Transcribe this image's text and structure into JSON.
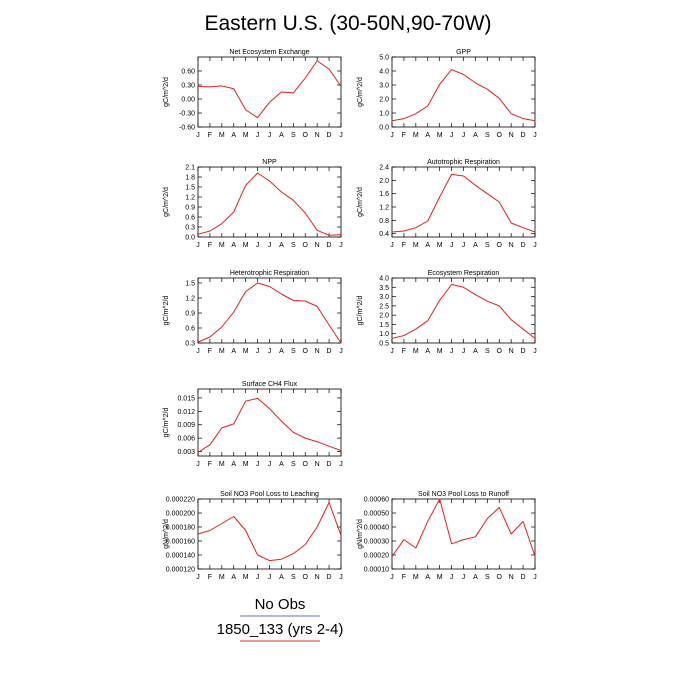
{
  "title": "Eastern U.S. (30-50N,90-70W)",
  "legend": [
    {
      "label": "No Obs",
      "color": "#4d6fd0"
    },
    {
      "label": "1850_133 (yrs 2-4)",
      "color": "#e03030"
    }
  ],
  "chart_data": [
    {
      "type": "line",
      "title": "Net Ecosystem Exchange",
      "ylabel": "gC/m^2/d",
      "categories": [
        "J",
        "F",
        "M",
        "A",
        "M",
        "J",
        "J",
        "A",
        "S",
        "O",
        "N",
        "D",
        "J"
      ],
      "yticks": [
        "0.60",
        "0.30",
        "0.00",
        "-0.30",
        "-0.60"
      ],
      "ylim": [
        -0.6,
        0.9
      ],
      "series": [
        {
          "color": "#e02020",
          "values": [
            0.27,
            0.26,
            0.28,
            0.22,
            -0.23,
            -0.4,
            -0.07,
            0.15,
            0.13,
            0.45,
            0.82,
            0.64,
            0.27
          ]
        }
      ]
    },
    {
      "type": "line",
      "title": "GPP",
      "ylabel": "gC/m^2/d",
      "categories": [
        "J",
        "F",
        "M",
        "A",
        "M",
        "J",
        "J",
        "A",
        "S",
        "O",
        "N",
        "D",
        "J"
      ],
      "yticks": [
        "5.0",
        "4.0",
        "3.0",
        "2.0",
        "1.0",
        "0.0"
      ],
      "ylim": [
        0,
        5
      ],
      "series": [
        {
          "color": "#e02020",
          "values": [
            0.45,
            0.6,
            0.95,
            1.5,
            3.05,
            4.1,
            3.75,
            3.15,
            2.7,
            2.05,
            0.95,
            0.6,
            0.45
          ]
        }
      ]
    },
    {
      "type": "line",
      "title": "NPP",
      "ylabel": "gC/m^2/d",
      "categories": [
        "J",
        "F",
        "M",
        "A",
        "M",
        "J",
        "J",
        "A",
        "S",
        "O",
        "N",
        "D",
        "J"
      ],
      "yticks": [
        "2.1",
        "1.8",
        "1.5",
        "1.2",
        "0.9",
        "0.6",
        "0.3",
        "0.0"
      ],
      "ylim": [
        0,
        2.1
      ],
      "series": [
        {
          "color": "#e02020",
          "values": [
            0.08,
            0.18,
            0.4,
            0.75,
            1.55,
            1.92,
            1.68,
            1.35,
            1.1,
            0.72,
            0.2,
            0.05,
            0.07
          ]
        }
      ]
    },
    {
      "type": "line",
      "title": "Autotrophic Respiration",
      "ylabel": "gC/m^2/d",
      "categories": [
        "J",
        "F",
        "M",
        "A",
        "M",
        "J",
        "J",
        "A",
        "S",
        "O",
        "N",
        "D",
        "J"
      ],
      "yticks": [
        "2.4",
        "2.0",
        "1.6",
        "1.2",
        "0.8",
        "0.4"
      ],
      "ylim": [
        0.3,
        2.4
      ],
      "series": [
        {
          "color": "#e02020",
          "values": [
            0.45,
            0.48,
            0.58,
            0.78,
            1.5,
            2.18,
            2.13,
            1.85,
            1.6,
            1.35,
            0.72,
            0.58,
            0.45
          ]
        }
      ]
    },
    {
      "type": "line",
      "title": "Heterotrophic Respiration",
      "ylabel": "gC/m^2/d",
      "categories": [
        "J",
        "F",
        "M",
        "A",
        "M",
        "J",
        "J",
        "A",
        "S",
        "O",
        "N",
        "D",
        "J"
      ],
      "yticks": [
        "1.5",
        "1.2",
        "0.9",
        "0.6",
        "0.3"
      ],
      "ylim": [
        0.3,
        1.6
      ],
      "series": [
        {
          "color": "#e02020",
          "values": [
            0.32,
            0.42,
            0.62,
            0.92,
            1.33,
            1.5,
            1.43,
            1.28,
            1.15,
            1.14,
            1.03,
            0.66,
            0.3
          ]
        }
      ]
    },
    {
      "type": "line",
      "title": "Ecosystem Respiration",
      "ylabel": "gC/m^2/d",
      "categories": [
        "J",
        "F",
        "M",
        "A",
        "M",
        "J",
        "J",
        "A",
        "S",
        "O",
        "N",
        "D",
        "J"
      ],
      "yticks": [
        "4.0",
        "3.5",
        "3.0",
        "2.5",
        "2.0",
        "1.5",
        "1.0",
        "0.5"
      ],
      "ylim": [
        0.5,
        4.0
      ],
      "series": [
        {
          "color": "#e02020",
          "values": [
            0.75,
            0.9,
            1.25,
            1.7,
            2.8,
            3.65,
            3.5,
            3.1,
            2.75,
            2.5,
            1.75,
            1.25,
            0.75
          ]
        }
      ]
    },
    {
      "type": "line",
      "title": "Surface CH4 Flux",
      "ylabel": "gC/m^2/d",
      "categories": [
        "J",
        "F",
        "M",
        "A",
        "M",
        "J",
        "J",
        "A",
        "S",
        "O",
        "N",
        "D",
        "J"
      ],
      "yticks": [
        "0.015",
        "0.012",
        "0.009",
        "0.006",
        "0.003"
      ],
      "ylim": [
        0.002,
        0.017
      ],
      "series": [
        {
          "color": "#e02020",
          "values": [
            0.0028,
            0.0045,
            0.0083,
            0.0092,
            0.0143,
            0.0149,
            0.0126,
            0.0098,
            0.0073,
            0.006,
            0.0052,
            0.0042,
            0.0032
          ]
        }
      ]
    },
    {
      "type": "line",
      "title": "Soil NO3 Pool Loss to Leaching",
      "ylabel": "gN/m^2/d",
      "categories": [
        "J",
        "F",
        "M",
        "A",
        "M",
        "J",
        "J",
        "A",
        "S",
        "O",
        "N",
        "D",
        "J"
      ],
      "yticks": [
        "0.000220",
        "0.000200",
        "0.000180",
        "0.000160",
        "0.000140",
        "0.000120"
      ],
      "ylim": [
        0.00012,
        0.00022
      ],
      "series": [
        {
          "color": "#e02020",
          "values": [
            0.00017,
            0.000175,
            0.000185,
            0.000195,
            0.000175,
            0.00014,
            0.000132,
            0.000134,
            0.000142,
            0.000155,
            0.00018,
            0.000215,
            0.000168
          ]
        }
      ]
    },
    {
      "type": "line",
      "title": "Soil NO3 Pool Loss to Runoff",
      "ylabel": "gN/m^2/d",
      "categories": [
        "J",
        "F",
        "M",
        "A",
        "M",
        "J",
        "J",
        "A",
        "S",
        "O",
        "N",
        "D",
        "J"
      ],
      "yticks": [
        "0.00060",
        "0.00050",
        "0.00040",
        "0.00030",
        "0.00020",
        "0.00010"
      ],
      "ylim": [
        0.0001,
        0.0006
      ],
      "series": [
        {
          "color": "#e02020",
          "values": [
            0.00019,
            0.00031,
            0.00025,
            0.00044,
            0.0006,
            0.00028,
            0.00031,
            0.00033,
            0.00046,
            0.00054,
            0.00035,
            0.00044,
            0.00019
          ]
        }
      ]
    }
  ]
}
